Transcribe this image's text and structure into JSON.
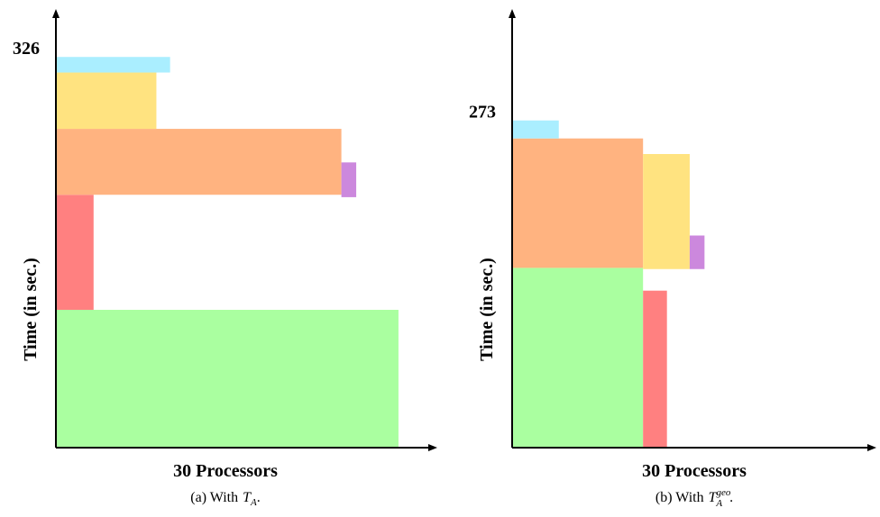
{
  "chart_data": [
    {
      "type": "gantt",
      "ylabel": "Time (in sec.)",
      "xlabel": "30 Processors",
      "caption": {
        "prefix": "(a) With",
        "symbol": "T",
        "subscript": "A",
        "suffix": "."
      },
      "xlim": [
        0,
        33.4
      ],
      "ylim": [
        0,
        366
      ],
      "yticks": [
        326
      ],
      "tasks": [
        {
          "color": "#aaffa0",
          "x": [
            0,
            30
          ],
          "y": [
            0,
            115
          ]
        },
        {
          "color": "#ff8080",
          "x": [
            0,
            3.3
          ],
          "y": [
            115,
            211
          ]
        },
        {
          "color": "#ffb380",
          "x": [
            0,
            25
          ],
          "y": [
            211,
            266
          ]
        },
        {
          "color": "#cc88dd",
          "x": [
            25,
            26.3
          ],
          "y": [
            209,
            238
          ]
        },
        {
          "color": "#ffe380",
          "x": [
            0,
            8.8
          ],
          "y": [
            266,
            313
          ]
        },
        {
          "color": "#aaeeff",
          "x": [
            0,
            10
          ],
          "y": [
            313,
            326
          ]
        }
      ]
    },
    {
      "type": "gantt",
      "ylabel": "Time (in sec.)",
      "xlabel": "30 Processors",
      "caption": {
        "prefix": "(b) With",
        "symbol": "T",
        "subscript": "A",
        "superscript": "geo",
        "suffix": "."
      },
      "xlim": [
        0,
        32
      ],
      "ylim": [
        0,
        366
      ],
      "yticks": [
        273
      ],
      "tasks": [
        {
          "color": "#aaffa0",
          "x": [
            0,
            11.5
          ],
          "y": [
            0,
            150
          ]
        },
        {
          "color": "#ff8080",
          "x": [
            11.5,
            13.6
          ],
          "y": [
            0,
            131
          ]
        },
        {
          "color": "#ffb380",
          "x": [
            0,
            11.5
          ],
          "y": [
            150,
            258
          ]
        },
        {
          "color": "#ffe380",
          "x": [
            11.5,
            15.6
          ],
          "y": [
            149,
            245
          ]
        },
        {
          "color": "#cc88dd",
          "x": [
            15.6,
            16.9
          ],
          "y": [
            149,
            177
          ]
        },
        {
          "color": "#aaeeff",
          "x": [
            0,
            4.1
          ],
          "y": [
            258,
            273
          ]
        }
      ]
    }
  ]
}
